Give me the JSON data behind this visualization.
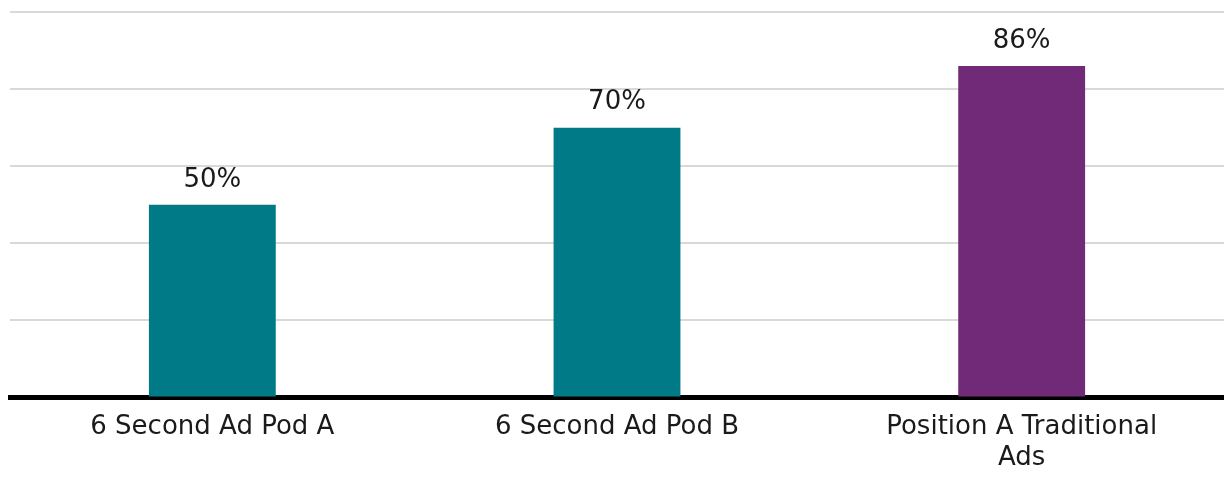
{
  "chart_data": {
    "type": "bar",
    "categories": [
      "6 Second Ad Pod A",
      "6 Second Ad Pod B",
      "Position A Traditional Ads"
    ],
    "values": [
      50,
      70,
      86
    ],
    "colors": [
      "#007a87",
      "#007a87",
      "#702a78"
    ],
    "value_labels": [
      "50%",
      "70%",
      "86%"
    ],
    "relative": false,
    "ylim": [
      0,
      100
    ],
    "yticks": [
      {
        "value": 0,
        "label": null
      },
      {
        "value": 20,
        "label": null
      },
      {
        "value": 40,
        "label": null
      },
      {
        "value": 60,
        "label": null
      },
      {
        "value": 80,
        "label": null
      },
      {
        "value": 100,
        "label": null
      }
    ],
    "grid": "y",
    "tick_labels": "x",
    "legend": false
  }
}
